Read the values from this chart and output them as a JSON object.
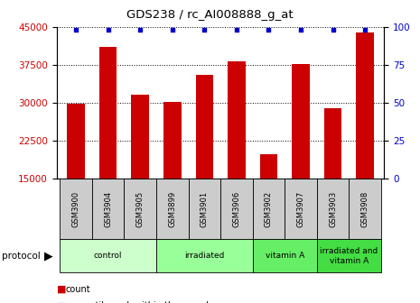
{
  "title": "GDS238 / rc_AI008888_g_at",
  "samples": [
    "GSM3900",
    "GSM3904",
    "GSM3905",
    "GSM3899",
    "GSM3901",
    "GSM3906",
    "GSM3902",
    "GSM3907",
    "GSM3903",
    "GSM3908"
  ],
  "counts": [
    29800,
    41200,
    31700,
    30200,
    35500,
    38200,
    19800,
    37800,
    29000,
    44000
  ],
  "percentiles": [
    100,
    100,
    100,
    100,
    100,
    100,
    100,
    100,
    100,
    100
  ],
  "ylim_left": [
    15000,
    45000
  ],
  "ylim_right": [
    0,
    100
  ],
  "yticks_left": [
    15000,
    22500,
    30000,
    37500,
    45000
  ],
  "yticks_right": [
    0,
    25,
    50,
    75,
    100
  ],
  "groups": [
    {
      "label": "control",
      "start": 0,
      "end": 3,
      "color": "#ccffcc"
    },
    {
      "label": "irradiated",
      "start": 3,
      "end": 6,
      "color": "#99ff99"
    },
    {
      "label": "vitamin A",
      "start": 6,
      "end": 8,
      "color": "#66ee66"
    },
    {
      "label": "irradiated and\nvitamin A",
      "start": 8,
      "end": 10,
      "color": "#44dd44"
    }
  ],
  "bar_color": "#cc0000",
  "percentile_color": "#0000cc",
  "bar_width": 0.55,
  "grid_color": "#000000",
  "sample_box_color": "#cccccc",
  "tick_label_color_left": "#cc0000",
  "tick_label_color_right": "#0000cc"
}
